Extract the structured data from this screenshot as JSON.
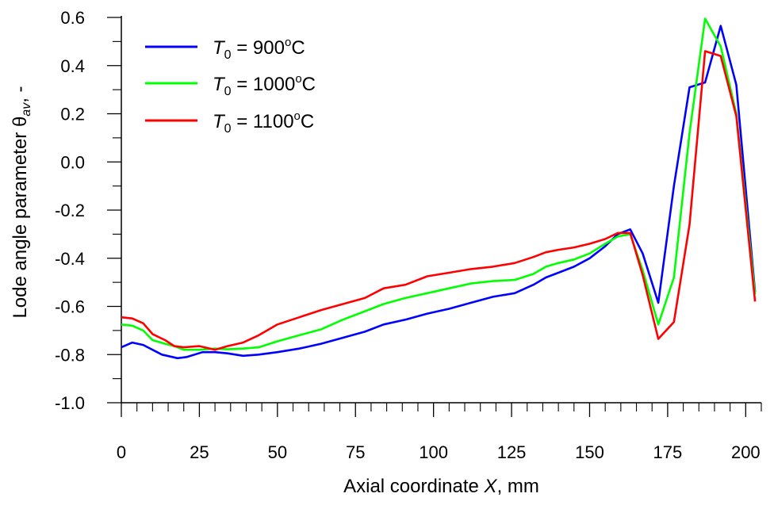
{
  "chart_data": {
    "type": "line",
    "title": "",
    "xlabel_prefix": "Axial coordinate ",
    "xlabel_var": "X",
    "xlabel_suffix": ", mm",
    "ylabel_prefix": "Lode angle parameter ",
    "ylabel_var": "θ",
    "ylabel_sub": "av",
    "ylabel_suffix": ", -",
    "xlim": [
      0,
      205
    ],
    "ylim": [
      -1.0,
      0.6
    ],
    "xticks": [
      0,
      25,
      50,
      75,
      100,
      125,
      150,
      175,
      200
    ],
    "yticks": [
      -1.0,
      -0.8,
      -0.6,
      -0.4,
      -0.2,
      0.0,
      0.2,
      0.4,
      0.6
    ],
    "xtick_labels": [
      "0",
      "25",
      "50",
      "75",
      "100",
      "125",
      "150",
      "175",
      "200"
    ],
    "ytick_labels": [
      "-1.0",
      "-0.8",
      "-0.6",
      "-0.4",
      "-0.2",
      "0.0",
      "0.2",
      "0.4",
      "0.6"
    ],
    "grid": false,
    "legend_position": "top-left",
    "series": [
      {
        "name": "T0 = 900oC",
        "legend_var": "T",
        "legend_sub": "0",
        "legend_eq": " = 900",
        "legend_sup": "o",
        "legend_unit": "C",
        "color": "#0000ff",
        "x": [
          0,
          3.5,
          7,
          13,
          18,
          21,
          26,
          30,
          34,
          39,
          44,
          50,
          57,
          64,
          71,
          78,
          84,
          91,
          98,
          105,
          112,
          119,
          126,
          132,
          136,
          140,
          145,
          150,
          155,
          159,
          163,
          167,
          172,
          177,
          182,
          187,
          192,
          197,
          203
        ],
        "values": [
          -0.77,
          -0.75,
          -0.76,
          -0.8,
          -0.815,
          -0.81,
          -0.79,
          -0.79,
          -0.795,
          -0.805,
          -0.8,
          -0.79,
          -0.775,
          -0.755,
          -0.73,
          -0.705,
          -0.675,
          -0.655,
          -0.63,
          -0.61,
          -0.585,
          -0.56,
          -0.545,
          -0.51,
          -0.48,
          -0.46,
          -0.435,
          -0.4,
          -0.35,
          -0.3,
          -0.28,
          -0.38,
          -0.585,
          -0.1,
          0.31,
          0.33,
          0.565,
          0.32,
          -0.54
        ]
      },
      {
        "name": "T0 = 1000oC",
        "legend_var": "T",
        "legend_sub": "0",
        "legend_eq": " = 1000",
        "legend_sup": "o",
        "legend_unit": "C",
        "color": "#00ff00",
        "x": [
          0,
          3.5,
          7,
          10,
          14,
          17,
          20,
          25,
          30,
          34,
          39,
          44,
          50,
          57,
          64,
          71,
          78,
          84,
          91,
          98,
          105,
          112,
          119,
          126,
          132,
          136,
          140,
          145,
          150,
          155,
          159,
          163,
          167,
          172,
          177,
          182,
          187,
          192,
          197,
          203
        ],
        "values": [
          -0.675,
          -0.68,
          -0.7,
          -0.74,
          -0.755,
          -0.765,
          -0.78,
          -0.78,
          -0.775,
          -0.778,
          -0.775,
          -0.77,
          -0.745,
          -0.72,
          -0.695,
          -0.655,
          -0.62,
          -0.59,
          -0.565,
          -0.545,
          -0.525,
          -0.505,
          -0.495,
          -0.49,
          -0.465,
          -0.435,
          -0.42,
          -0.405,
          -0.38,
          -0.34,
          -0.31,
          -0.3,
          -0.45,
          -0.675,
          -0.48,
          0.12,
          0.595,
          0.48,
          0.2,
          -0.55
        ]
      },
      {
        "name": "T0 = 1100oC",
        "legend_var": "T",
        "legend_sub": "0",
        "legend_eq": " = 1100",
        "legend_sup": "o",
        "legend_unit": "C",
        "color": "#ff0000",
        "x": [
          0,
          3.5,
          7,
          10,
          14,
          17,
          20,
          25,
          30,
          34,
          39,
          44,
          50,
          57,
          64,
          71,
          78,
          84,
          91,
          98,
          105,
          112,
          119,
          126,
          132,
          136,
          140,
          145,
          150,
          155,
          159,
          163,
          167,
          172,
          177,
          182,
          187,
          192,
          197,
          203
        ],
        "values": [
          -0.645,
          -0.65,
          -0.67,
          -0.715,
          -0.74,
          -0.765,
          -0.77,
          -0.765,
          -0.78,
          -0.765,
          -0.75,
          -0.72,
          -0.675,
          -0.645,
          -0.615,
          -0.59,
          -0.565,
          -0.525,
          -0.51,
          -0.475,
          -0.46,
          -0.445,
          -0.435,
          -0.42,
          -0.395,
          -0.375,
          -0.365,
          -0.355,
          -0.34,
          -0.32,
          -0.295,
          -0.295,
          -0.47,
          -0.735,
          -0.665,
          -0.26,
          0.46,
          0.44,
          0.19,
          -0.58
        ]
      }
    ]
  }
}
